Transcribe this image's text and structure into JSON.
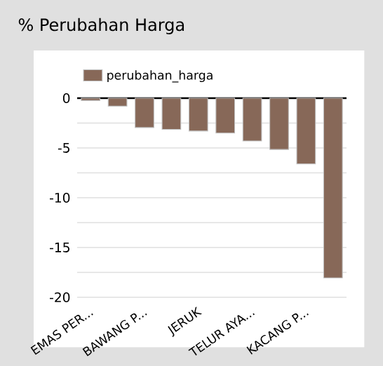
{
  "chart_data": {
    "type": "bar",
    "title": "% Perubahan Harga",
    "categories": [
      "EMAS PER...",
      null,
      "BAWANG P...",
      null,
      "JERUK",
      null,
      "TELUR AYA...",
      null,
      "KACANG P...",
      null
    ],
    "series": [
      {
        "name": "perubahan_harga",
        "color": "#876858",
        "values": [
          -0.24,
          -0.8,
          -2.95,
          -3.14,
          -3.3,
          -3.5,
          -4.3,
          -5.15,
          -6.6,
          -18.05
        ]
      }
    ],
    "ylim": [
      -20,
      0
    ],
    "yticks": [
      -20,
      {
        "value": -17.5,
        "label": null
      },
      -15,
      {
        "value": -12.5,
        "label": null
      },
      -10,
      {
        "value": -7.5,
        "label": null
      },
      -5,
      {
        "value": -2.5,
        "label": null
      },
      0
    ],
    "grid": "y",
    "legend": "top left"
  }
}
